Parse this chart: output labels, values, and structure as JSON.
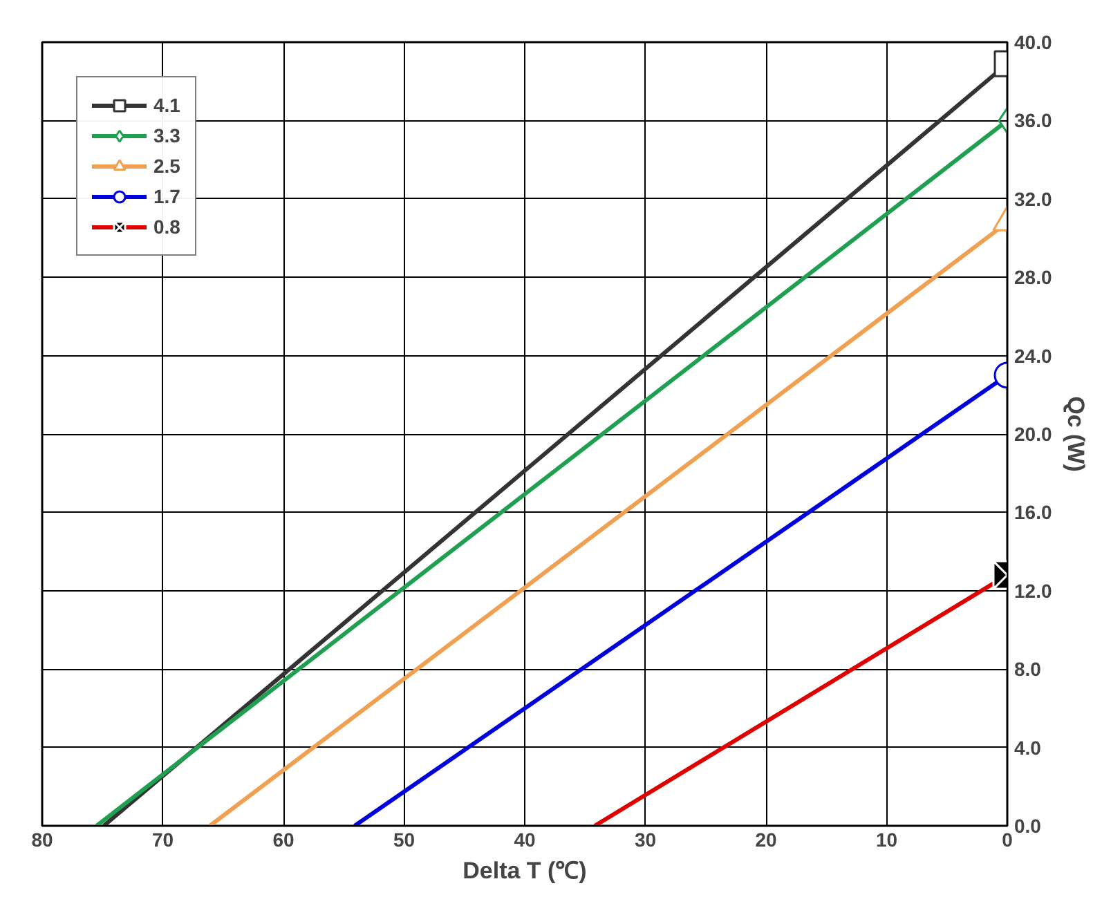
{
  "chart_data": {
    "type": "line",
    "xlabel": "Delta T (℃)",
    "ylabel": "Qc (W)",
    "xlim": [
      80,
      0
    ],
    "xticks": [
      80,
      70,
      60,
      50,
      40,
      30,
      20,
      10,
      0
    ],
    "ylim": [
      0,
      40
    ],
    "yticks": [
      {
        "value": 0,
        "label": "0.0"
      },
      {
        "value": 4,
        "label": "4.0"
      },
      {
        "value": 8,
        "label": "8.0"
      },
      {
        "value": 12,
        "label": "12.0"
      },
      {
        "value": 16,
        "label": "16.0"
      },
      {
        "value": 20,
        "label": "20.0"
      },
      {
        "value": 24,
        "label": "24.0"
      },
      {
        "value": 28,
        "label": "28.0"
      },
      {
        "value": 32,
        "label": "32.0"
      },
      {
        "value": 36,
        "label": "36.0"
      },
      {
        "value": 40,
        "label": "40.0"
      }
    ],
    "grid": true,
    "legend": "top left",
    "line_style": "solid",
    "series": [
      {
        "name": "4.1",
        "color": "#333333",
        "marker": "square",
        "x": [
          74.9,
          0
        ],
        "values": [
          0,
          38.9
        ]
      },
      {
        "name": "3.3",
        "color": "#1fa050",
        "marker": "diamond",
        "x": [
          75.5,
          0
        ],
        "values": [
          0,
          36
        ]
      },
      {
        "name": "2.5",
        "color": "#f0a050",
        "marker": "triangle",
        "x": [
          66.1,
          0
        ],
        "values": [
          0,
          30.8
        ]
      },
      {
        "name": "1.7",
        "color": "#0000dd",
        "marker": "circle",
        "x": [
          54.1,
          0
        ],
        "values": [
          0,
          23.0
        ]
      },
      {
        "name": "0.8",
        "color": "#e00000",
        "marker": "cross",
        "x": [
          34.2,
          0
        ],
        "values": [
          0,
          12.8
        ]
      }
    ]
  }
}
